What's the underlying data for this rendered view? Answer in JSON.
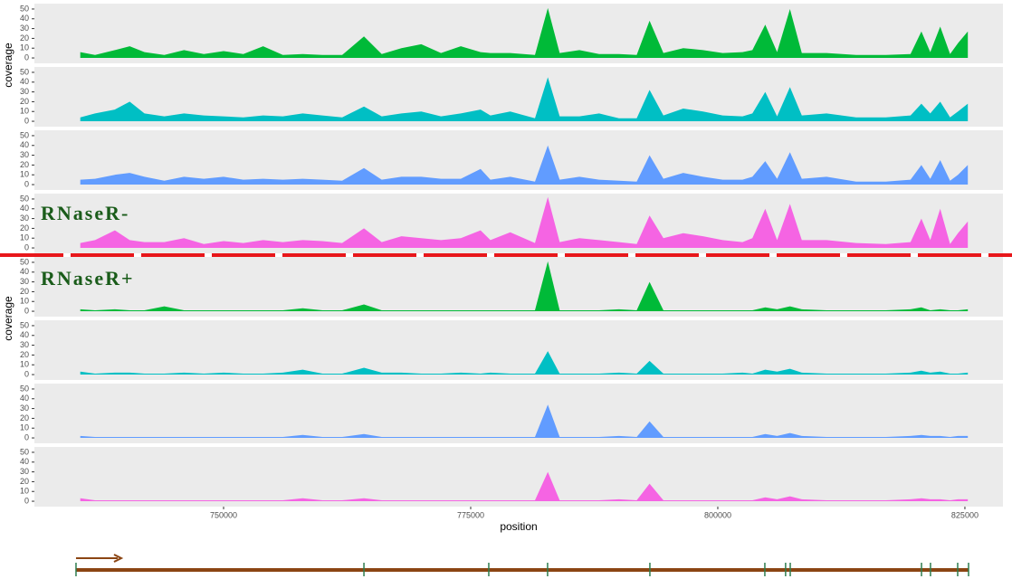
{
  "chart_data": {
    "type": "area",
    "x": [
      735500,
      737000,
      739000,
      740500,
      742000,
      744000,
      746000,
      748000,
      750000,
      752000,
      754000,
      756000,
      758000,
      760000,
      762000,
      764200,
      766000,
      768000,
      770000,
      772000,
      774000,
      776000,
      777000,
      779000,
      781500,
      782800,
      784000,
      786000,
      788000,
      790000,
      791800,
      793100,
      794500,
      796500,
      798500,
      800500,
      802500,
      803500,
      804800,
      806000,
      807300,
      808500,
      811000,
      814000,
      817000,
      819500,
      820600,
      821500,
      822500,
      823500,
      824300,
      825300
    ],
    "series": [
      {
        "color": "#00ba38",
        "values": [
          6,
          3,
          8,
          12,
          6,
          3,
          8,
          4,
          7,
          4,
          12,
          3,
          4,
          3,
          3,
          22,
          4,
          10,
          14,
          5,
          12,
          6,
          5,
          5,
          3,
          51,
          5,
          8,
          4,
          4,
          3,
          38,
          5,
          10,
          8,
          5,
          6,
          8,
          34,
          6,
          50,
          5,
          5,
          3,
          3,
          4,
          27,
          6,
          32,
          4,
          15,
          27
        ]
      },
      {
        "color": "#00bfc4",
        "values": [
          4,
          8,
          12,
          20,
          8,
          5,
          8,
          6,
          5,
          4,
          6,
          5,
          8,
          6,
          4,
          15,
          5,
          8,
          10,
          5,
          8,
          12,
          6,
          10,
          3,
          45,
          5,
          5,
          8,
          3,
          3,
          32,
          6,
          13,
          10,
          6,
          5,
          8,
          30,
          5,
          35,
          6,
          8,
          4,
          4,
          6,
          18,
          8,
          20,
          4,
          10,
          18
        ]
      },
      {
        "color": "#619cff",
        "values": [
          5,
          6,
          10,
          12,
          8,
          4,
          8,
          6,
          8,
          5,
          6,
          5,
          6,
          5,
          4,
          17,
          5,
          8,
          8,
          6,
          6,
          16,
          5,
          8,
          3,
          40,
          5,
          8,
          5,
          4,
          3,
          30,
          6,
          12,
          8,
          5,
          5,
          8,
          24,
          6,
          33,
          6,
          8,
          3,
          3,
          5,
          20,
          6,
          25,
          4,
          10,
          20
        ]
      },
      {
        "color": "#f564e3",
        "values": [
          5,
          8,
          18,
          8,
          6,
          6,
          10,
          4,
          7,
          5,
          8,
          6,
          8,
          7,
          5,
          20,
          6,
          12,
          10,
          8,
          10,
          18,
          8,
          16,
          5,
          52,
          6,
          10,
          8,
          6,
          4,
          33,
          10,
          15,
          12,
          8,
          6,
          10,
          40,
          8,
          45,
          8,
          8,
          5,
          4,
          6,
          30,
          8,
          40,
          4,
          15,
          27
        ]
      },
      {
        "color": "#00ba38",
        "values": [
          2,
          1,
          2,
          1,
          1,
          5,
          1,
          1,
          1,
          1,
          1,
          1,
          3,
          1,
          1,
          7,
          1,
          1,
          1,
          1,
          1,
          1,
          1,
          1,
          1,
          51,
          1,
          1,
          1,
          2,
          1,
          30,
          1,
          1,
          1,
          1,
          1,
          1,
          4,
          2,
          5,
          2,
          1,
          1,
          1,
          2,
          4,
          1,
          2,
          1,
          1,
          2
        ]
      },
      {
        "color": "#00bfc4",
        "values": [
          3,
          1,
          2,
          2,
          1,
          1,
          2,
          1,
          2,
          1,
          1,
          2,
          5,
          1,
          1,
          7,
          2,
          2,
          1,
          1,
          2,
          1,
          2,
          1,
          1,
          24,
          1,
          1,
          1,
          2,
          1,
          14,
          1,
          1,
          1,
          1,
          2,
          1,
          5,
          3,
          6,
          2,
          1,
          1,
          1,
          2,
          4,
          2,
          3,
          1,
          1,
          2
        ]
      },
      {
        "color": "#619cff",
        "values": [
          2,
          1,
          1,
          1,
          1,
          1,
          1,
          1,
          1,
          1,
          1,
          1,
          3,
          1,
          1,
          4,
          1,
          1,
          1,
          1,
          1,
          1,
          1,
          1,
          1,
          34,
          1,
          1,
          1,
          2,
          1,
          17,
          1,
          1,
          1,
          1,
          1,
          1,
          4,
          2,
          5,
          2,
          1,
          1,
          1,
          2,
          3,
          2,
          2,
          1,
          2,
          2
        ]
      },
      {
        "color": "#f564e3",
        "values": [
          3,
          1,
          1,
          1,
          1,
          1,
          1,
          1,
          1,
          1,
          1,
          1,
          3,
          1,
          1,
          3,
          1,
          1,
          1,
          1,
          1,
          1,
          1,
          1,
          1,
          30,
          1,
          1,
          1,
          2,
          1,
          18,
          1,
          1,
          1,
          1,
          1,
          1,
          4,
          2,
          5,
          2,
          1,
          1,
          1,
          2,
          3,
          2,
          2,
          1,
          2,
          2
        ]
      }
    ],
    "xlim": [
      730860,
      828850
    ],
    "xticks": [
      750000,
      775000,
      800000,
      825000
    ],
    "ylim": [
      -5.5,
      55.5
    ],
    "yticks": [
      0,
      10,
      20,
      30,
      40,
      50
    ],
    "x_label": "position",
    "y_label": "coverage",
    "annotations": [
      "RNaseR-",
      "RNaseR+"
    ],
    "gene_track": {
      "start": 735070,
      "end": 825370,
      "marks": [
        735070,
        764200,
        776830,
        782780,
        793130,
        804760,
        806860,
        807330,
        820610,
        821520,
        824270,
        825370
      ]
    }
  }
}
